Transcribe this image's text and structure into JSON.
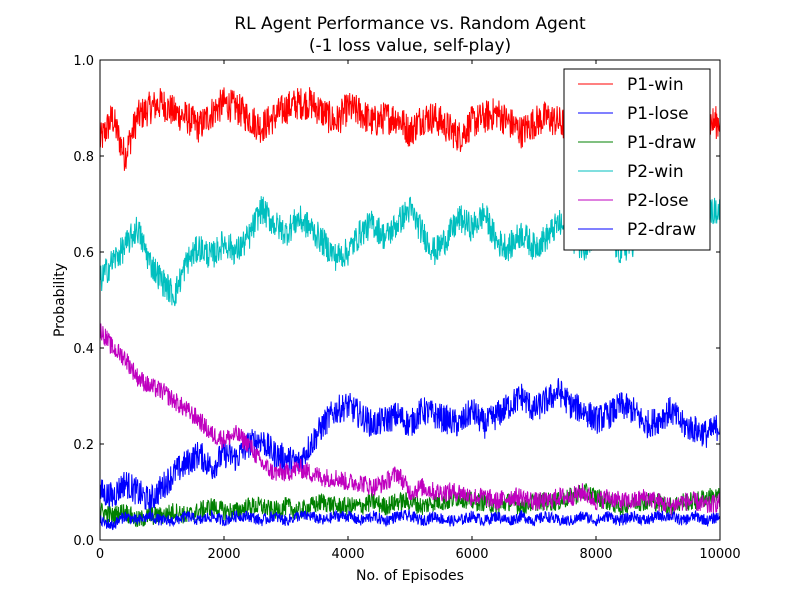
{
  "chart_data": {
    "type": "line",
    "title": "RL Agent Performance vs. Random Agent",
    "subtitle": "(-1 loss value, self-play)",
    "xlabel": "No. of Episodes",
    "ylabel": "Probability",
    "xlim": [
      0,
      10000
    ],
    "ylim": [
      0.0,
      1.0
    ],
    "x_ticks": [
      "0",
      "2000",
      "4000",
      "6000",
      "8000",
      "10000"
    ],
    "y_ticks": [
      "0.0",
      "0.2",
      "0.4",
      "0.6",
      "0.8",
      "1.0"
    ],
    "grid": false,
    "legend_position": "top-right",
    "series": [
      {
        "name": "P1-win",
        "color": "#ff0000",
        "x": [
          0,
          200,
          400,
          600,
          800,
          1000,
          1200,
          1400,
          1600,
          1800,
          2000,
          2200,
          2400,
          2600,
          2800,
          3000,
          3200,
          3400,
          3600,
          3800,
          4000,
          4200,
          4400,
          4600,
          4800,
          5000,
          5200,
          5400,
          5600,
          5800,
          6000,
          6200,
          6400,
          6600,
          6800,
          7000,
          7200,
          7400,
          7600,
          7800,
          8000,
          8200,
          8400,
          8600,
          8800,
          9000,
          9200,
          9400,
          9600,
          9800,
          10000
        ],
        "values": [
          0.83,
          0.88,
          0.8,
          0.88,
          0.9,
          0.91,
          0.89,
          0.88,
          0.86,
          0.89,
          0.91,
          0.9,
          0.88,
          0.86,
          0.88,
          0.9,
          0.91,
          0.91,
          0.89,
          0.87,
          0.9,
          0.89,
          0.87,
          0.88,
          0.88,
          0.85,
          0.88,
          0.88,
          0.86,
          0.84,
          0.87,
          0.88,
          0.89,
          0.87,
          0.85,
          0.87,
          0.88,
          0.87,
          0.86,
          0.86,
          0.88,
          0.88,
          0.89,
          0.87,
          0.87,
          0.88,
          0.88,
          0.9,
          0.88,
          0.87,
          0.87
        ]
      },
      {
        "name": "P1-lose",
        "color": "#0000ff",
        "x": [
          0,
          200,
          400,
          600,
          800,
          1000,
          1200,
          1400,
          1600,
          1800,
          2000,
          2200,
          2400,
          2600,
          2800,
          3000,
          3200,
          3400,
          3600,
          3800,
          4000,
          4200,
          4400,
          4600,
          4800,
          5000,
          5200,
          5400,
          5600,
          5800,
          6000,
          6200,
          6400,
          6600,
          6800,
          7000,
          7200,
          7400,
          7600,
          7800,
          8000,
          8200,
          8400,
          8600,
          8800,
          9000,
          9200,
          9400,
          9600,
          9800,
          10000
        ],
        "values": [
          0.1,
          0.09,
          0.12,
          0.1,
          0.08,
          0.11,
          0.14,
          0.16,
          0.18,
          0.15,
          0.18,
          0.17,
          0.2,
          0.21,
          0.18,
          0.17,
          0.16,
          0.2,
          0.24,
          0.27,
          0.28,
          0.26,
          0.24,
          0.25,
          0.26,
          0.24,
          0.27,
          0.26,
          0.25,
          0.24,
          0.27,
          0.24,
          0.26,
          0.28,
          0.3,
          0.27,
          0.29,
          0.31,
          0.28,
          0.27,
          0.25,
          0.26,
          0.28,
          0.27,
          0.24,
          0.25,
          0.27,
          0.24,
          0.23,
          0.22,
          0.24
        ]
      },
      {
        "name": "P1-draw",
        "color": "#008000",
        "x": [
          0,
          200,
          400,
          600,
          800,
          1000,
          1200,
          1400,
          1600,
          1800,
          2000,
          2200,
          2400,
          2600,
          2800,
          3000,
          3200,
          3400,
          3600,
          3800,
          4000,
          4200,
          4400,
          4600,
          4800,
          5000,
          5200,
          5400,
          5600,
          5800,
          6000,
          6200,
          6400,
          6600,
          6800,
          7000,
          7200,
          7400,
          7600,
          7800,
          8000,
          8200,
          8400,
          8600,
          8800,
          9000,
          9200,
          9400,
          9600,
          9800,
          10000
        ],
        "values": [
          0.06,
          0.05,
          0.06,
          0.04,
          0.05,
          0.05,
          0.06,
          0.05,
          0.06,
          0.07,
          0.06,
          0.06,
          0.07,
          0.07,
          0.06,
          0.07,
          0.06,
          0.07,
          0.08,
          0.07,
          0.07,
          0.07,
          0.08,
          0.07,
          0.08,
          0.08,
          0.07,
          0.08,
          0.08,
          0.09,
          0.08,
          0.08,
          0.07,
          0.08,
          0.07,
          0.08,
          0.08,
          0.08,
          0.09,
          0.1,
          0.09,
          0.08,
          0.07,
          0.08,
          0.08,
          0.08,
          0.07,
          0.08,
          0.08,
          0.09,
          0.09
        ]
      },
      {
        "name": "P2-win",
        "color": "#00bfbf",
        "x": [
          0,
          200,
          400,
          600,
          800,
          1000,
          1200,
          1400,
          1600,
          1800,
          2000,
          2200,
          2400,
          2600,
          2800,
          3000,
          3200,
          3400,
          3600,
          3800,
          4000,
          4200,
          4400,
          4600,
          4800,
          5000,
          5200,
          5400,
          5600,
          5800,
          6000,
          6200,
          6400,
          6600,
          6800,
          7000,
          7200,
          7400,
          7600,
          7800,
          8000,
          8200,
          8400,
          8600,
          8800,
          9000,
          9200,
          9400,
          9600,
          9800,
          10000
        ],
        "values": [
          0.54,
          0.58,
          0.61,
          0.65,
          0.58,
          0.54,
          0.51,
          0.58,
          0.61,
          0.59,
          0.62,
          0.6,
          0.63,
          0.69,
          0.66,
          0.64,
          0.67,
          0.65,
          0.62,
          0.59,
          0.6,
          0.64,
          0.66,
          0.63,
          0.66,
          0.69,
          0.64,
          0.6,
          0.63,
          0.67,
          0.65,
          0.68,
          0.62,
          0.61,
          0.64,
          0.61,
          0.63,
          0.66,
          0.63,
          0.61,
          0.64,
          0.63,
          0.6,
          0.62,
          0.63,
          0.65,
          0.64,
          0.66,
          0.67,
          0.68,
          0.69
        ]
      },
      {
        "name": "P2-lose",
        "color": "#bf00bf",
        "x": [
          0,
          200,
          400,
          600,
          800,
          1000,
          1200,
          1400,
          1600,
          1800,
          2000,
          2200,
          2400,
          2600,
          2800,
          3000,
          3200,
          3400,
          3600,
          3800,
          4000,
          4200,
          4400,
          4600,
          4800,
          5000,
          5200,
          5400,
          5600,
          5800,
          6000,
          6200,
          6400,
          6600,
          6800,
          7000,
          7200,
          7400,
          7600,
          7800,
          8000,
          8200,
          8400,
          8600,
          8800,
          9000,
          9200,
          9400,
          9600,
          9800,
          10000
        ],
        "values": [
          0.44,
          0.4,
          0.38,
          0.34,
          0.32,
          0.31,
          0.29,
          0.27,
          0.25,
          0.22,
          0.21,
          0.22,
          0.2,
          0.16,
          0.14,
          0.14,
          0.15,
          0.14,
          0.13,
          0.13,
          0.12,
          0.12,
          0.11,
          0.12,
          0.14,
          0.1,
          0.11,
          0.1,
          0.1,
          0.1,
          0.09,
          0.09,
          0.08,
          0.09,
          0.09,
          0.08,
          0.08,
          0.09,
          0.09,
          0.1,
          0.08,
          0.09,
          0.08,
          0.08,
          0.09,
          0.08,
          0.07,
          0.08,
          0.08,
          0.07,
          0.08
        ]
      },
      {
        "name": "P2-draw",
        "color": "#0000ff",
        "x": [
          0,
          200,
          400,
          600,
          800,
          1000,
          1200,
          1400,
          1600,
          1800,
          2000,
          2200,
          2400,
          2600,
          2800,
          3000,
          3200,
          3400,
          3600,
          3800,
          4000,
          4200,
          4400,
          4600,
          4800,
          5000,
          5200,
          5400,
          5600,
          5800,
          6000,
          6200,
          6400,
          6600,
          6800,
          7000,
          7200,
          7400,
          7600,
          7800,
          8000,
          8200,
          8400,
          8600,
          8800,
          9000,
          9200,
          9400,
          9600,
          9800,
          10000
        ],
        "values": [
          0.04,
          0.03,
          0.05,
          0.04,
          0.05,
          0.04,
          0.04,
          0.05,
          0.04,
          0.05,
          0.04,
          0.05,
          0.05,
          0.04,
          0.05,
          0.04,
          0.05,
          0.05,
          0.04,
          0.05,
          0.05,
          0.04,
          0.05,
          0.04,
          0.05,
          0.05,
          0.04,
          0.05,
          0.04,
          0.04,
          0.05,
          0.04,
          0.05,
          0.04,
          0.05,
          0.04,
          0.05,
          0.04,
          0.04,
          0.05,
          0.04,
          0.05,
          0.04,
          0.05,
          0.04,
          0.05,
          0.05,
          0.04,
          0.05,
          0.04,
          0.05
        ]
      }
    ]
  }
}
